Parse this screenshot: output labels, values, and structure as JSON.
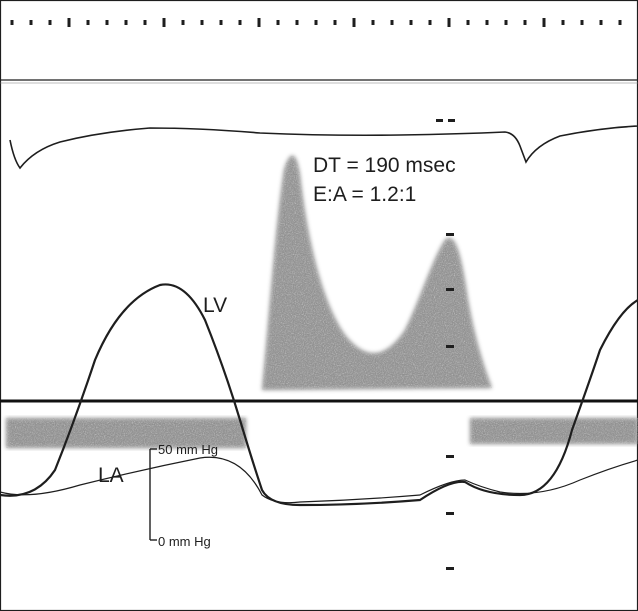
{
  "annotations": {
    "dt": "DT = 190 msec",
    "ea": "E:A = 1.2:1",
    "lv": "LV",
    "la": "LA",
    "scale_top": "50 mm Hg",
    "scale_bottom": "0 mm Hg"
  },
  "colors": {
    "ink": "#1e1e1e",
    "doppler": "#6e6e6e",
    "paper": "#ffffff"
  }
}
